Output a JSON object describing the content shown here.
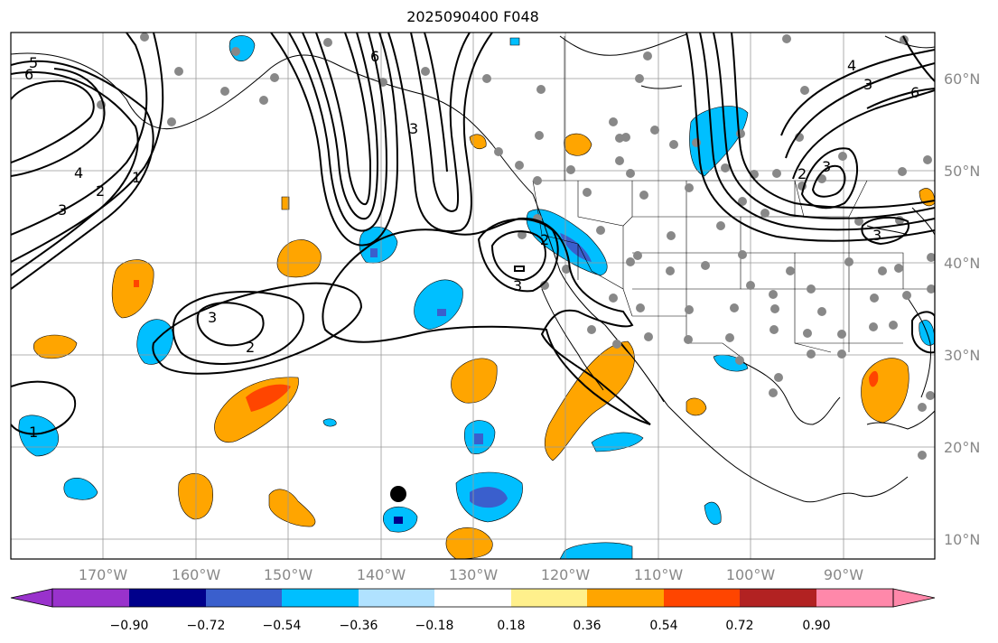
{
  "title": "2025090400 F048",
  "map": {
    "projection": "lat-lon",
    "lon_range": [
      -179,
      -79
    ],
    "lat_range": [
      8,
      65
    ],
    "lon_ticks": [
      "170°W",
      "160°W",
      "150°W",
      "140°W",
      "130°W",
      "120°W",
      "110°W",
      "100°W",
      "90°W"
    ],
    "lat_ticks": [
      "60°N",
      "50°N",
      "40°N",
      "30°N",
      "20°N",
      "10°N"
    ],
    "contour_labels": [
      "5",
      "6",
      "4",
      "3",
      "2",
      "1",
      "6",
      "3",
      "3",
      "2",
      "3",
      "2",
      "1",
      "4",
      "3",
      "6",
      "2",
      "3",
      "3"
    ],
    "marker": {
      "lon": -138,
      "lat": 15,
      "label": "black-dot"
    }
  },
  "colorbar": {
    "ticks": [
      "−0.90",
      "−0.72",
      "−0.54",
      "−0.36",
      "−0.18",
      "0.18",
      "0.36",
      "0.54",
      "0.72",
      "0.90"
    ],
    "colors": [
      "#9932cc",
      "#00008b",
      "#3a5fcd",
      "#00bfff",
      "#b0e2ff",
      "#ffffff",
      "#fff08c",
      "#ffa500",
      "#ff4500",
      "#b22222",
      "#ff88aa"
    ]
  },
  "colors": {
    "land_border": "#000000",
    "grid": "#999999",
    "stations": "#888888"
  }
}
